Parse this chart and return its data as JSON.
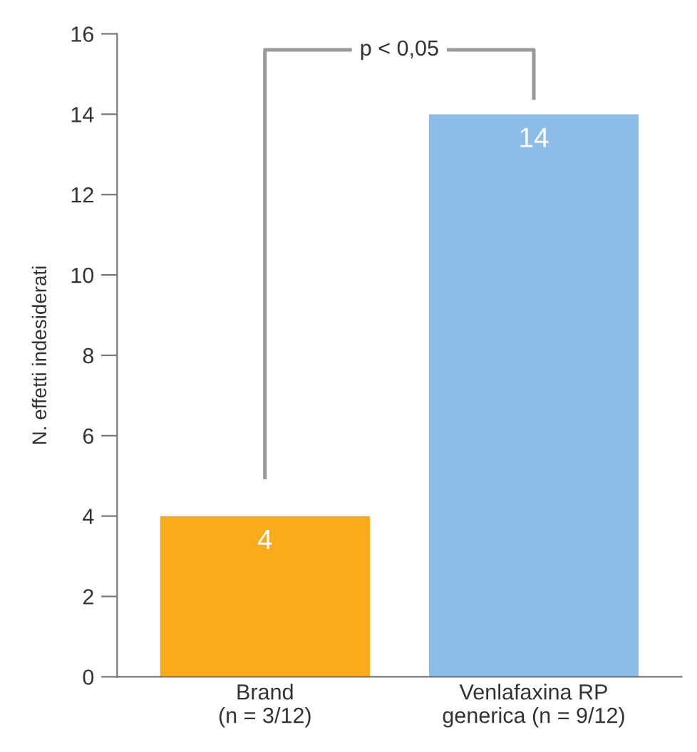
{
  "chart_data": {
    "type": "bar",
    "ylabel": "N. effetti indesiderati",
    "categories": [
      "Brand\n(n = 3/12)",
      "Venlafaxina RP\ngenerica (n = 9/12)"
    ],
    "values": [
      4,
      14
    ],
    "colors": [
      "#f9ab1a",
      "#8bbde8"
    ],
    "ylim": [
      0,
      16
    ],
    "yticks": [
      0,
      2,
      4,
      6,
      8,
      10,
      12,
      14,
      16
    ],
    "grid": false,
    "data_labels": true,
    "annotations": [
      "p < 0,05"
    ]
  }
}
